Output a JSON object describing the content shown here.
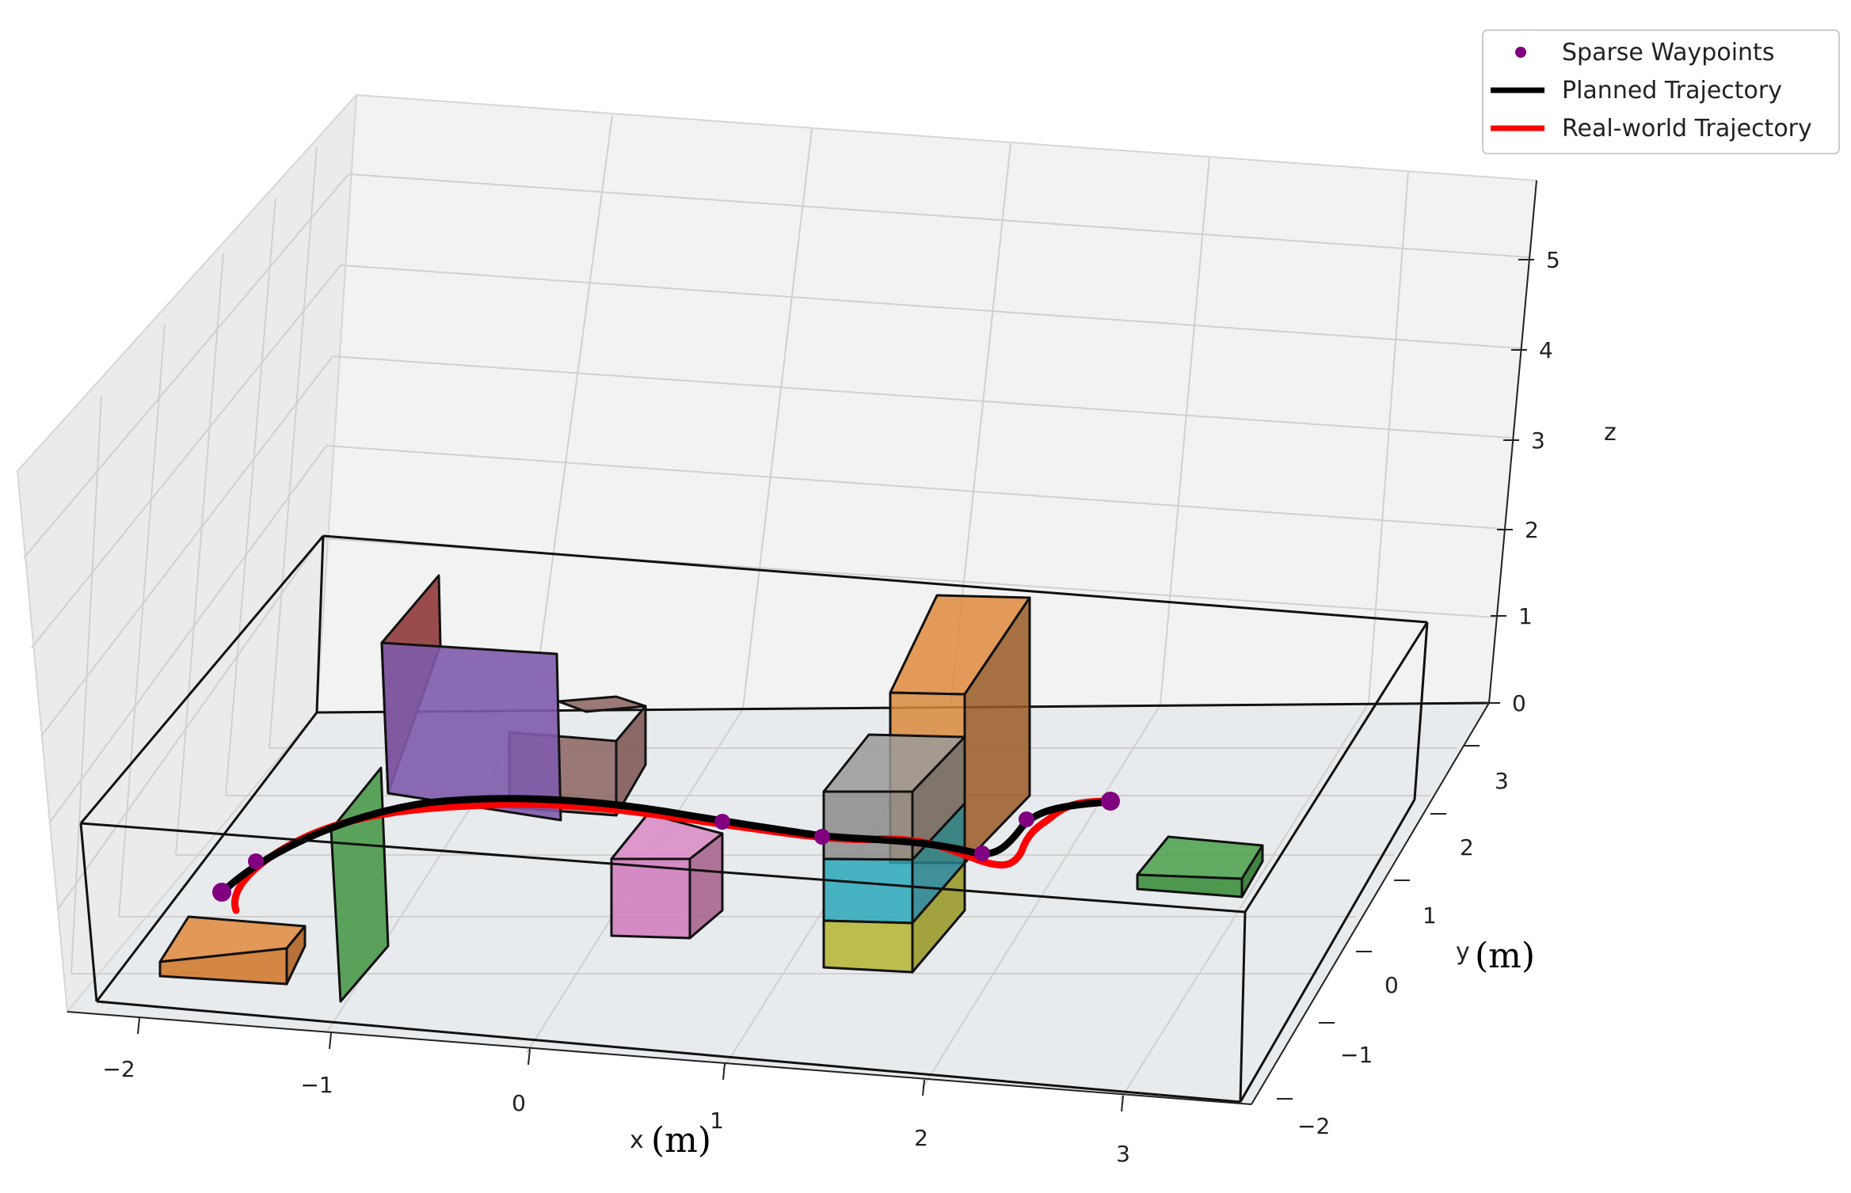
{
  "chart_data": {
    "type": "3d-line-scatter",
    "xlabel": "x",
    "ylabel": "y",
    "zlabel": "z",
    "xlabel_unit": "(m)",
    "ylabel_unit": "(m)",
    "x_ticks": [
      "−2",
      "−1",
      "0",
      "1",
      "2",
      "3"
    ],
    "y_ticks": [
      "3",
      "2",
      "1",
      "0",
      "−1",
      "−2"
    ],
    "z_ticks": [
      "0",
      "1",
      "2",
      "3",
      "4",
      "5"
    ],
    "xlim": [
      -2.3,
      3.5
    ],
    "ylim": [
      -2.2,
      3.2
    ],
    "zlim": [
      0,
      5.8
    ],
    "grid": true,
    "legend_position": "top-right",
    "legend": [
      {
        "label": "Sparse Waypoints",
        "marker": "dot",
        "color": "#800080"
      },
      {
        "label": "Planned Trajectory",
        "marker": "line",
        "color": "#000000"
      },
      {
        "label": "Real-world Trajectory",
        "marker": "line",
        "color": "#ff0000"
      }
    ],
    "colors": {
      "waypoints": "#800080",
      "planned": "#000000",
      "real": "#ff0000"
    }
  }
}
